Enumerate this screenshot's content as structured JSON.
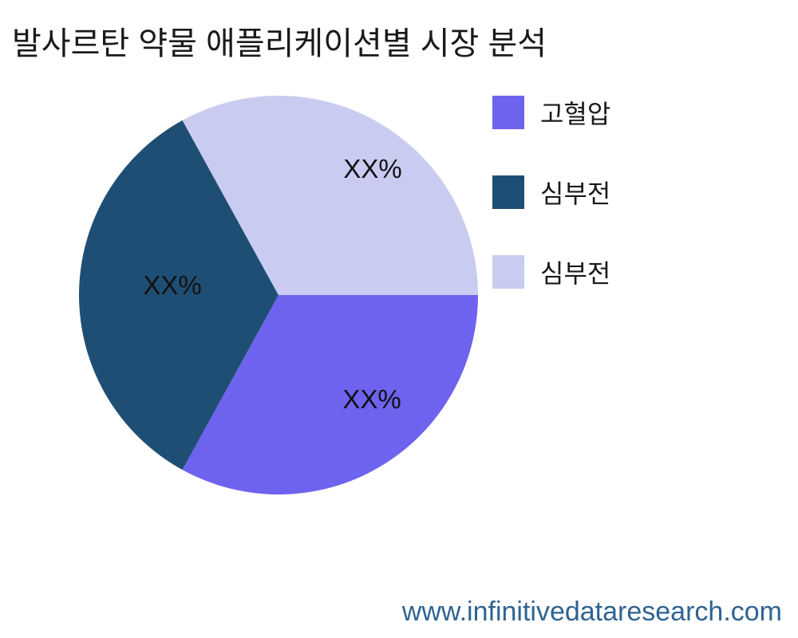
{
  "page": {
    "title": "발사르탄 약물 애플리케이션별 시장 분석",
    "background_color": "#ffffff"
  },
  "chart_data": {
    "type": "pie",
    "title": "발사르탄 약물 애플리케이션별 시장 분석",
    "slices": [
      {
        "label": "고혈압",
        "value": 33,
        "value_label": "XX%",
        "color": "#6E63EE"
      },
      {
        "label": "심부전",
        "value": 34,
        "value_label": "XX%",
        "color": "#1F4E74"
      },
      {
        "label": "심부전",
        "value": 33,
        "value_label": "XX%",
        "color": "#C9CCF0"
      }
    ],
    "start_angle_deg": 0,
    "direction": "clockwise",
    "legend_position": "right",
    "text_color": "#111111"
  },
  "footer": {
    "website": "www.infinitivedataresearch.com",
    "color": "#2F6391"
  }
}
